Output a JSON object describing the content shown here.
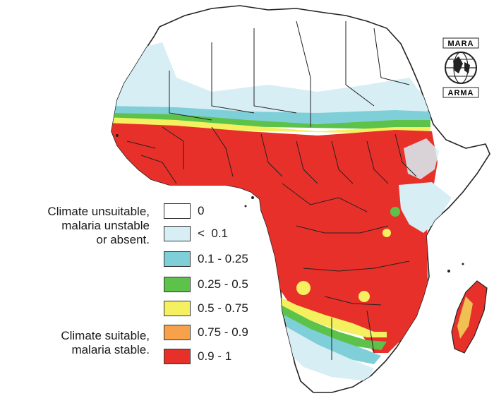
{
  "logo": {
    "top_text": "MARA",
    "bottom_text": "ARMA"
  },
  "legend": {
    "group_unsuitable": {
      "lines": [
        "Climate unsuitable,",
        "malaria unstable",
        "or absent."
      ]
    },
    "group_suitable": {
      "lines": [
        "Climate suitable,",
        "malaria stable."
      ]
    },
    "entries": [
      {
        "label": "0",
        "color": "#ffffff"
      },
      {
        "label": "<  0.1",
        "color": "#d6eef4"
      },
      {
        "label": "0.1 - 0.25",
        "color": "#7fcfd8"
      },
      {
        "label": "0.25 - 0.5",
        "color": "#5cc24a"
      },
      {
        "label": "0.5 - 0.75",
        "color": "#f4f060"
      },
      {
        "label": "0.75 - 0.9",
        "color": "#f7a24a"
      },
      {
        "label": "0.9 - 1",
        "color": "#e8302a"
      }
    ]
  },
  "colors": {
    "border": "#222222",
    "red": "#e8302a",
    "yellow": "#f4f060",
    "green": "#5cc24a",
    "teal": "#7fcfd8",
    "lightblue": "#d6eef4",
    "white": "#ffffff"
  }
}
